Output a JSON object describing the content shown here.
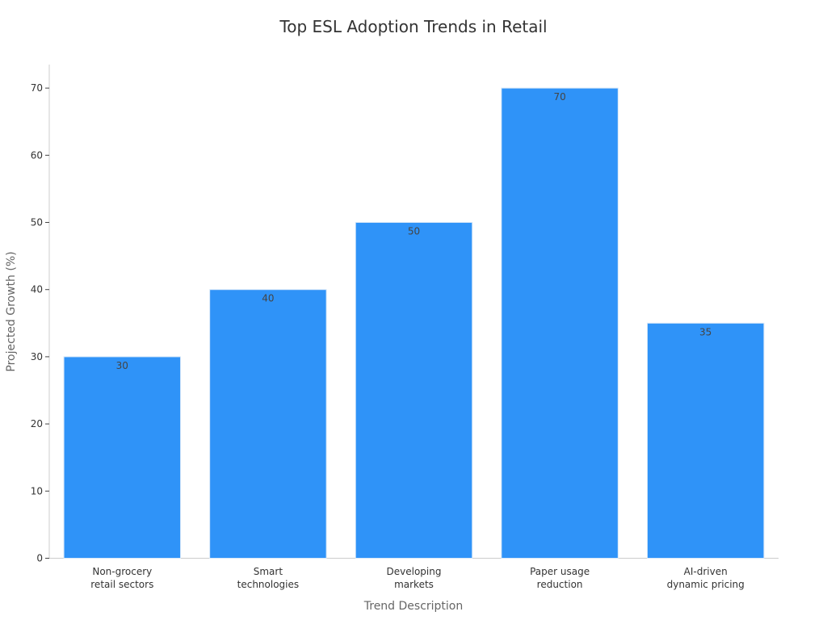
{
  "chart_data": {
    "type": "bar",
    "title": "Top ESL Adoption Trends in Retail",
    "xlabel": "Trend Description",
    "ylabel": "Projected Growth (%)",
    "categories": [
      [
        "Non-grocery",
        "retail sectors"
      ],
      [
        "Smart",
        "technologies"
      ],
      [
        "Developing",
        "markets"
      ],
      [
        "Paper usage",
        "reduction"
      ],
      [
        "AI-driven",
        "dynamic pricing"
      ]
    ],
    "values": [
      30,
      40,
      50,
      70,
      35
    ],
    "ylim": [
      0,
      73.5
    ],
    "yticks": [
      0,
      10,
      20,
      30,
      40,
      50,
      60,
      70
    ],
    "grid": false,
    "legend": "none",
    "bar_color": "#2f93f8"
  }
}
